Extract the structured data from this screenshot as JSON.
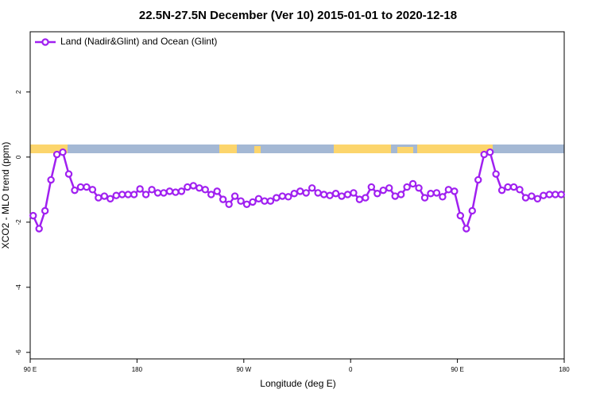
{
  "chart_data": {
    "type": "line",
    "title": "22.5N-27.5N December (Ver 10)   2015-01-01 to 2020-12-18",
    "xlabel": "Longitude (deg E)",
    "ylabel": "XCO2 - MLO trend (ppm)",
    "xlim": [
      90,
      540
    ],
    "ylim": [
      -6.2,
      3.85
    ],
    "xticks": [
      {
        "value": 90,
        "label": "90 E"
      },
      180,
      {
        "value": 270,
        "label": "90 W"
      },
      {
        "value": 360,
        "label": "0"
      },
      {
        "value": 450,
        "label": "90 E"
      },
      {
        "value": 540,
        "label": "180"
      }
    ],
    "yticks": [
      -6,
      -4,
      -2,
      0,
      2
    ],
    "legend": "top-left",
    "series": [
      {
        "name": "Land (Nadir&Glint) and Ocean (Glint)",
        "color": "#a020f0",
        "x": [
          92.5,
          97.5,
          102.5,
          107.5,
          112.5,
          117.5,
          122.5,
          127.5,
          132.5,
          137.5,
          142.5,
          147.5,
          152.5,
          157.5,
          162.5,
          167.5,
          172.5,
          177.5,
          182.5,
          187.5,
          192.5,
          197.5,
          202.5,
          207.5,
          212.5,
          217.5,
          222.5,
          227.5,
          232.5,
          237.5,
          242.5,
          247.5,
          252.5,
          257.5,
          262.5,
          267.5,
          272.5,
          277.5,
          282.5,
          287.5,
          292.5,
          297.5,
          302.5,
          307.5,
          312.5,
          317.5,
          322.5,
          327.5,
          332.5,
          337.5,
          342.5,
          347.5,
          352.5,
          357.5,
          362.5,
          367.5,
          372.5,
          377.5,
          382.5,
          387.5,
          392.5,
          397.5,
          402.5,
          407.5,
          412.5,
          417.5,
          422.5,
          427.5,
          432.5,
          437.5,
          442.5,
          447.5,
          452.5,
          457.5,
          462.5,
          467.5,
          472.5,
          477.5,
          482.5,
          487.5,
          492.5,
          497.5,
          502.5,
          507.5,
          512.5,
          517.5,
          522.5,
          527.5,
          532.5,
          537.5
        ],
        "values": [
          -1.8,
          -2.2,
          -1.65,
          -0.7,
          0.08,
          0.15,
          -0.52,
          -1.02,
          -0.92,
          -0.92,
          -1.0,
          -1.25,
          -1.2,
          -1.28,
          -1.18,
          -1.15,
          -1.15,
          -1.15,
          -0.98,
          -1.15,
          -1.0,
          -1.1,
          -1.1,
          -1.05,
          -1.08,
          -1.05,
          -0.92,
          -0.88,
          -0.95,
          -1.0,
          -1.15,
          -1.05,
          -1.3,
          -1.45,
          -1.2,
          -1.35,
          -1.45,
          -1.38,
          -1.28,
          -1.35,
          -1.35,
          -1.25,
          -1.2,
          -1.22,
          -1.12,
          -1.05,
          -1.1,
          -0.95,
          -1.1,
          -1.15,
          -1.18,
          -1.12,
          -1.2,
          -1.15,
          -1.1,
          -1.3,
          -1.25,
          -0.92,
          -1.12,
          -1.02,
          -0.95,
          -1.2,
          -1.15,
          -0.92,
          -0.82,
          -0.95,
          -1.25,
          -1.12,
          -1.1,
          -1.22,
          -1.0,
          -1.05,
          -1.8,
          -2.2,
          -1.65,
          -0.7,
          0.08,
          0.15,
          -0.52,
          -1.02,
          -0.92,
          -0.92,
          -1.0,
          -1.25,
          -1.2,
          -1.28,
          -1.18,
          -1.15,
          -1.15,
          -1.15
        ]
      }
    ]
  }
}
